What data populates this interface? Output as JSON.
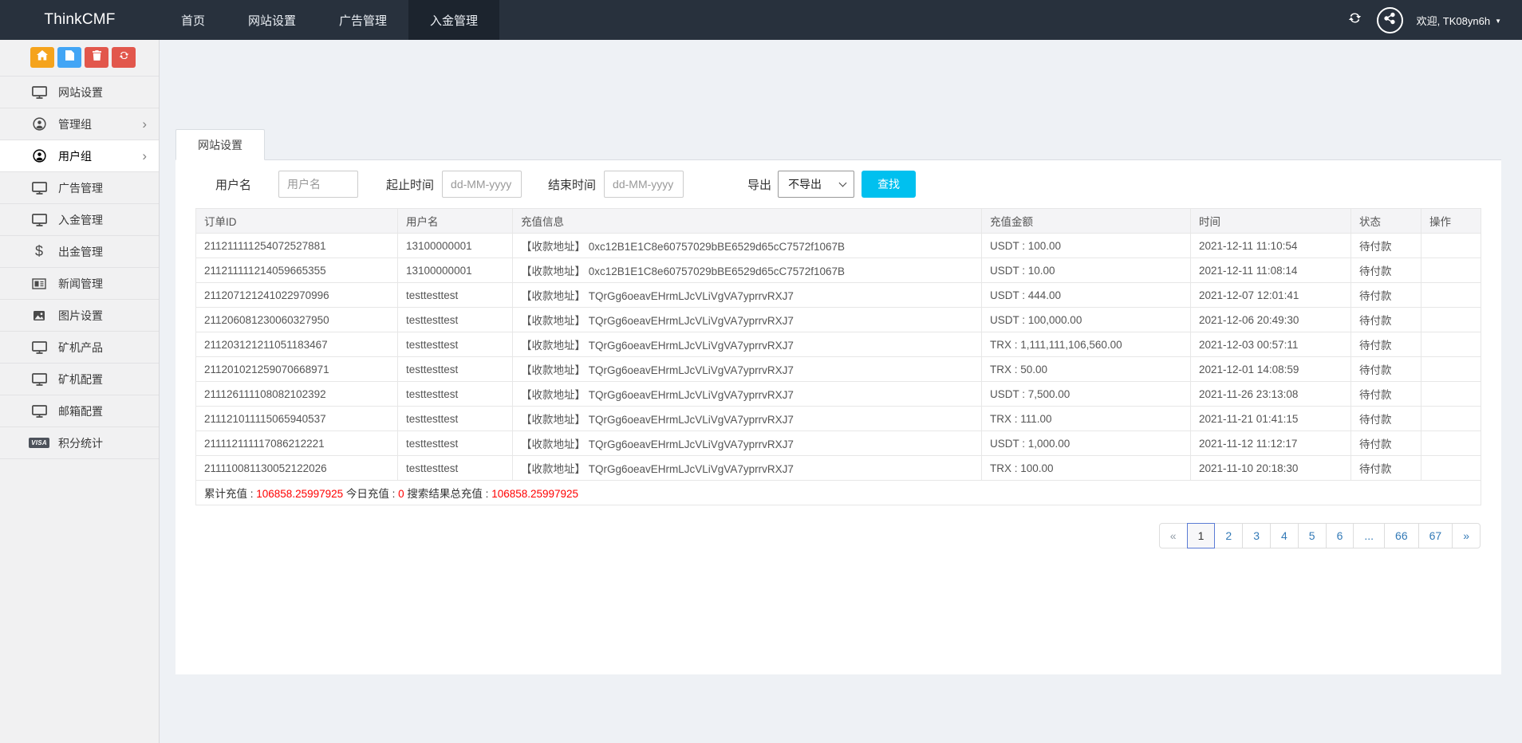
{
  "colors": {
    "navbar_bg": "#28313d",
    "navbar_active_bg": "#1c242e",
    "accent_button": "#00c0ef",
    "link_blue": "#337ab7",
    "summary_red": "#ff0000",
    "toolbar_home": "#f5a31c",
    "toolbar_file": "#42a5f5",
    "toolbar_trash": "#e2574c",
    "toolbar_recycle": "#e2574c"
  },
  "navbar": {
    "brand": "ThinkCMF",
    "items": [
      {
        "name": "nav-item-home",
        "label": "首页",
        "active": false
      },
      {
        "name": "nav-item-site-settings",
        "label": "网站设置",
        "active": false
      },
      {
        "name": "nav-item-ad-management",
        "label": "广告管理",
        "active": false
      },
      {
        "name": "nav-item-deposit-management",
        "label": "入金管理",
        "active": true
      }
    ],
    "welcome": "欢迎, TK08yn6h",
    "caret": "▼"
  },
  "sidebar": {
    "toolbar": [
      {
        "name": "home-button",
        "icon": "home",
        "color": "#f5a31c"
      },
      {
        "name": "file-button",
        "icon": "file",
        "color": "#42a5f5"
      },
      {
        "name": "trash-button",
        "icon": "trash",
        "color": "#e2574c"
      },
      {
        "name": "recycle-button",
        "icon": "recycle",
        "color": "#e2574c"
      }
    ],
    "items": [
      {
        "name": "sidebar-item-site-settings",
        "label": "网站设置",
        "icon": "monitor",
        "chevron": false,
        "active": false
      },
      {
        "name": "sidebar-item-admin-group",
        "label": "管理组",
        "icon": "user",
        "chevron": true,
        "active": false
      },
      {
        "name": "sidebar-item-user-group",
        "label": "用户组",
        "icon": "user",
        "chevron": true,
        "active": true
      },
      {
        "name": "sidebar-item-ad-management",
        "label": "广告管理",
        "icon": "monitor",
        "chevron": false,
        "active": false
      },
      {
        "name": "sidebar-item-deposit-management",
        "label": "入金管理",
        "icon": "monitor",
        "chevron": false,
        "active": false
      },
      {
        "name": "sidebar-item-withdraw-management",
        "label": "出金管理",
        "icon": "dollar",
        "chevron": false,
        "active": false
      },
      {
        "name": "sidebar-item-news-management",
        "label": "新闻管理",
        "icon": "news",
        "chevron": false,
        "active": false
      },
      {
        "name": "sidebar-item-image-settings",
        "label": "图片设置",
        "icon": "image",
        "chevron": false,
        "active": false
      },
      {
        "name": "sidebar-item-miner-products",
        "label": "矿机产品",
        "icon": "monitor",
        "chevron": false,
        "active": false
      },
      {
        "name": "sidebar-item-miner-config",
        "label": "矿机配置",
        "icon": "monitor",
        "chevron": false,
        "active": false
      },
      {
        "name": "sidebar-item-mailbox-config",
        "label": "邮箱配置",
        "icon": "monitor",
        "chevron": false,
        "active": false
      },
      {
        "name": "sidebar-item-points-stats",
        "label": "积分统计",
        "icon": "visa",
        "chevron": false,
        "active": false
      }
    ]
  },
  "main": {
    "tab": "网站设置",
    "search": {
      "username_label": "用户名",
      "username_placeholder": "用户名",
      "start_label": "起止时间",
      "start_placeholder": "dd-MM-yyyy",
      "end_label": "结束时间",
      "end_placeholder": "dd-MM-yyyy",
      "export_label": "导出",
      "export_value": "不导出",
      "search_button": "查找"
    },
    "table": {
      "columns": [
        "订单ID",
        "用户名",
        "充值信息",
        "充值金额",
        "时间",
        "状态",
        "操作"
      ],
      "rows": [
        {
          "order_id": "211211111254072527881",
          "user": "13100000001",
          "info": "【收款地址】 0xc12B1E1C8e60757029bBE6529d65cC7572f1067B",
          "amount": "USDT : 100.00",
          "time": "2021-12-11 11:10:54",
          "status": "待付款",
          "action": ""
        },
        {
          "order_id": "211211111214059665355",
          "user": "13100000001",
          "info": "【收款地址】 0xc12B1E1C8e60757029bBE6529d65cC7572f1067B",
          "amount": "USDT : 10.00",
          "time": "2021-12-11 11:08:14",
          "status": "待付款",
          "action": ""
        },
        {
          "order_id": "211207121241022970996",
          "user": "testtesttest",
          "info": "【收款地址】 TQrGg6oeavEHrmLJcVLiVgVA7yprrvRXJ7",
          "amount": "USDT : 444.00",
          "time": "2021-12-07 12:01:41",
          "status": "待付款",
          "action": ""
        },
        {
          "order_id": "211206081230060327950",
          "user": "testtesttest",
          "info": "【收款地址】 TQrGg6oeavEHrmLJcVLiVgVA7yprrvRXJ7",
          "amount": "USDT : 100,000.00",
          "time": "2021-12-06 20:49:30",
          "status": "待付款",
          "action": ""
        },
        {
          "order_id": "211203121211051183467",
          "user": "testtesttest",
          "info": "【收款地址】 TQrGg6oeavEHrmLJcVLiVgVA7yprrvRXJ7",
          "amount": "TRX : 1,111,111,106,560.00",
          "time": "2021-12-03 00:57:11",
          "status": "待付款",
          "action": ""
        },
        {
          "order_id": "211201021259070668971",
          "user": "testtesttest",
          "info": "【收款地址】 TQrGg6oeavEHrmLJcVLiVgVA7yprrvRXJ7",
          "amount": "TRX : 50.00",
          "time": "2021-12-01 14:08:59",
          "status": "待付款",
          "action": ""
        },
        {
          "order_id": "211126111108082102392",
          "user": "testtesttest",
          "info": "【收款地址】 TQrGg6oeavEHrmLJcVLiVgVA7yprrvRXJ7",
          "amount": "USDT : 7,500.00",
          "time": "2021-11-26 23:13:08",
          "status": "待付款",
          "action": ""
        },
        {
          "order_id": "211121011115065940537",
          "user": "testtesttest",
          "info": "【收款地址】 TQrGg6oeavEHrmLJcVLiVgVA7yprrvRXJ7",
          "amount": "TRX : 111.00",
          "time": "2021-11-21 01:41:15",
          "status": "待付款",
          "action": ""
        },
        {
          "order_id": "211112111117086212221",
          "user": "testtesttest",
          "info": "【收款地址】 TQrGg6oeavEHrmLJcVLiVgVA7yprrvRXJ7",
          "amount": "USDT : 1,000.00",
          "time": "2021-11-12 11:12:17",
          "status": "待付款",
          "action": ""
        },
        {
          "order_id": "211110081130052122026",
          "user": "testtesttest",
          "info": "【收款地址】 TQrGg6oeavEHrmLJcVLiVgVA7yprrvRXJ7",
          "amount": "TRX : 100.00",
          "time": "2021-11-10 20:18:30",
          "status": "待付款",
          "action": ""
        }
      ]
    },
    "summary": {
      "segments": [
        {
          "text": "累计充值 : ",
          "red": false
        },
        {
          "text": "106858.25997925",
          "red": true
        },
        {
          "text": " 今日充值 : ",
          "red": false
        },
        {
          "text": "0",
          "red": true
        },
        {
          "text": " 搜索结果总充值 : ",
          "red": false
        },
        {
          "text": "106858.25997925",
          "red": true
        }
      ]
    },
    "pagination": {
      "items": [
        "«",
        "1",
        "2",
        "3",
        "4",
        "5",
        "6",
        "...",
        "66",
        "67",
        "»"
      ],
      "active": "1"
    }
  }
}
